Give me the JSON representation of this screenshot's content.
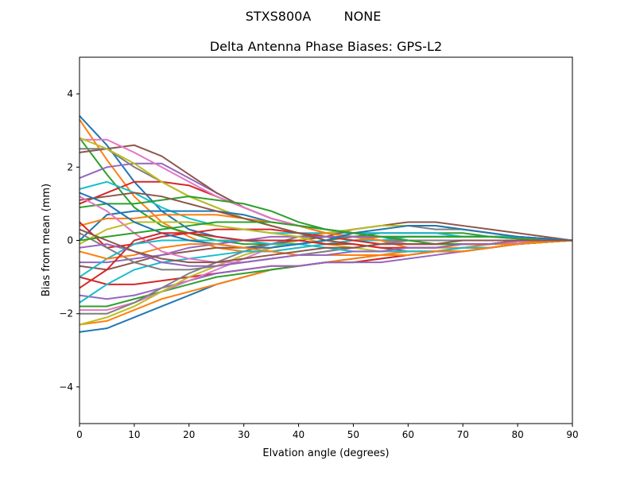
{
  "suptitle_station": "STXS800A",
  "suptitle_radome": "NONE",
  "chart_data": {
    "type": "line",
    "title": "Delta Antenna Phase Biases: GPS-L2",
    "xlabel": "Elvation angle (degrees)",
    "ylabel": "Bias from mean (mm)",
    "xlim": [
      0,
      90
    ],
    "ylim": [
      -5,
      5
    ],
    "xticks": [
      0,
      10,
      20,
      30,
      40,
      50,
      60,
      70,
      80,
      90
    ],
    "yticks": [
      -4,
      -2,
      0,
      2,
      4
    ],
    "ytick_labels": [
      "−4",
      "−2",
      "0",
      "2",
      "4"
    ],
    "grid": false,
    "legend": "none",
    "colors": [
      "#1f77b4",
      "#ff7f0e",
      "#2ca02c",
      "#d62728",
      "#9467bd",
      "#8c564b",
      "#e377c2",
      "#7f7f7f",
      "#bcbd22",
      "#17becf"
    ],
    "x": [
      0,
      5,
      10,
      15,
      20,
      25,
      30,
      35,
      40,
      45,
      50,
      55,
      60,
      65,
      70,
      75,
      80,
      85,
      90
    ],
    "series": [
      {
        "values": [
          3.4,
          2.6,
          1.6,
          0.8,
          0.3,
          0.1,
          0.0,
          -0.1,
          -0.1,
          0.0,
          0.1,
          0.1,
          0.1,
          0.1,
          0.1,
          0.1,
          0.1,
          0.05,
          0
        ]
      },
      {
        "values": [
          3.3,
          2.2,
          1.2,
          0.5,
          0.1,
          -0.2,
          -0.3,
          -0.3,
          -0.2,
          -0.1,
          0.0,
          0.1,
          0.1,
          0.1,
          0.1,
          0.1,
          0.1,
          0.05,
          0
        ]
      },
      {
        "values": [
          2.8,
          1.8,
          0.9,
          0.4,
          0.2,
          0.0,
          -0.1,
          -0.1,
          -0.1,
          0.0,
          0.1,
          0.2,
          0.2,
          0.2,
          0.2,
          0.1,
          0.1,
          0.05,
          0
        ]
      },
      {
        "values": [
          1.0,
          1.3,
          1.6,
          1.6,
          1.5,
          1.2,
          0.9,
          0.6,
          0.4,
          0.2,
          0.1,
          0.1,
          0.1,
          0.1,
          0.1,
          0.1,
          0.05,
          0,
          0
        ]
      },
      {
        "values": [
          1.7,
          2.0,
          2.1,
          2.1,
          1.7,
          1.3,
          0.9,
          0.6,
          0.4,
          0.3,
          0.2,
          0.2,
          0.2,
          0.2,
          0.1,
          0.1,
          0.1,
          0.05,
          0
        ]
      },
      {
        "values": [
          2.4,
          2.5,
          2.6,
          2.3,
          1.8,
          1.3,
          0.9,
          0.6,
          0.4,
          0.2,
          0.1,
          0.0,
          -0.1,
          -0.1,
          -0.1,
          -0.1,
          -0.1,
          0,
          0
        ]
      },
      {
        "values": [
          2.75,
          2.75,
          2.4,
          2.0,
          1.6,
          1.2,
          0.9,
          0.6,
          0.4,
          0.2,
          0.1,
          0.0,
          -0.1,
          -0.1,
          -0.1,
          -0.1,
          -0.05,
          0,
          0
        ]
      },
      {
        "values": [
          2.5,
          2.5,
          2.0,
          1.6,
          1.2,
          0.9,
          0.6,
          0.4,
          0.2,
          0.1,
          0.1,
          0.0,
          0.0,
          0.0,
          0.0,
          0.0,
          0.0,
          0,
          0
        ]
      },
      {
        "values": [
          2.8,
          2.5,
          2.1,
          1.6,
          1.2,
          0.9,
          0.6,
          0.4,
          0.2,
          0.1,
          0.0,
          -0.1,
          -0.1,
          -0.1,
          -0.1,
          -0.1,
          0,
          0,
          0
        ]
      },
      {
        "values": [
          1.4,
          1.6,
          1.3,
          0.9,
          0.6,
          0.4,
          0.3,
          0.2,
          0.2,
          0.2,
          0.2,
          0.2,
          0.2,
          0.2,
          0.1,
          0.1,
          0.1,
          0.05,
          0
        ]
      },
      {
        "values": [
          -2.5,
          -2.4,
          -2.1,
          -1.8,
          -1.5,
          -1.2,
          -1.0,
          -0.8,
          -0.7,
          -0.6,
          -0.5,
          -0.4,
          -0.3,
          -0.3,
          -0.2,
          -0.2,
          -0.1,
          -0.05,
          0
        ]
      },
      {
        "values": [
          -2.3,
          -2.2,
          -1.9,
          -1.6,
          -1.4,
          -1.2,
          -1.0,
          -0.8,
          -0.7,
          -0.6,
          -0.5,
          -0.4,
          -0.3,
          -0.3,
          -0.2,
          -0.2,
          -0.1,
          -0.05,
          0
        ]
      },
      {
        "values": [
          -1.8,
          -1.8,
          -1.6,
          -1.4,
          -1.2,
          -1.0,
          -0.9,
          -0.8,
          -0.7,
          -0.6,
          -0.6,
          -0.5,
          -0.4,
          -0.3,
          -0.2,
          -0.2,
          -0.1,
          -0.05,
          0
        ]
      },
      {
        "values": [
          -1.0,
          -1.2,
          -1.2,
          -1.1,
          -1.0,
          -0.9,
          -0.8,
          -0.7,
          -0.7,
          -0.6,
          -0.6,
          -0.5,
          -0.4,
          -0.3,
          -0.3,
          -0.2,
          -0.1,
          -0.05,
          0
        ]
      },
      {
        "values": [
          -1.5,
          -1.6,
          -1.5,
          -1.3,
          -1.1,
          -0.9,
          -0.8,
          -0.7,
          -0.7,
          -0.6,
          -0.6,
          -0.6,
          -0.5,
          -0.4,
          -0.3,
          -0.2,
          -0.1,
          -0.05,
          0
        ]
      },
      {
        "values": [
          -0.7,
          -0.8,
          -0.6,
          -0.4,
          -0.3,
          -0.2,
          -0.2,
          -0.1,
          0.0,
          0.1,
          0.3,
          0.4,
          0.5,
          0.5,
          0.4,
          0.3,
          0.2,
          0.1,
          0
        ]
      },
      {
        "values": [
          -1.9,
          -1.9,
          -1.7,
          -1.4,
          -1.1,
          -0.8,
          -0.5,
          -0.2,
          0.0,
          0.2,
          0.3,
          0.4,
          0.4,
          0.4,
          0.3,
          0.2,
          0.1,
          0.05,
          0
        ]
      },
      {
        "values": [
          -2.0,
          -2.0,
          -1.7,
          -1.3,
          -0.9,
          -0.6,
          -0.3,
          -0.1,
          0.1,
          0.2,
          0.3,
          0.4,
          0.4,
          0.3,
          0.3,
          0.2,
          0.1,
          0.05,
          0
        ]
      },
      {
        "values": [
          -2.3,
          -2.1,
          -1.8,
          -1.4,
          -1.0,
          -0.7,
          -0.4,
          -0.2,
          0.0,
          0.2,
          0.3,
          0.4,
          0.4,
          0.4,
          0.3,
          0.2,
          0.1,
          0.05,
          0
        ]
      },
      {
        "values": [
          -1.7,
          -1.2,
          -0.8,
          -0.6,
          -0.5,
          -0.4,
          -0.3,
          -0.3,
          -0.2,
          -0.1,
          0.0,
          0.0,
          0.1,
          0.1,
          0.1,
          0.1,
          0.1,
          0.05,
          0
        ]
      },
      {
        "values": [
          0.0,
          0.7,
          0.8,
          0.8,
          0.8,
          0.8,
          0.7,
          0.5,
          0.4,
          0.3,
          0.2,
          0.1,
          0.0,
          0.0,
          0.0,
          0.0,
          0.0,
          0,
          0
        ]
      },
      {
        "values": [
          0.4,
          0.6,
          0.6,
          0.7,
          0.7,
          0.7,
          0.6,
          0.5,
          0.4,
          0.2,
          0.1,
          0.0,
          -0.2,
          -0.2,
          -0.2,
          -0.1,
          -0.1,
          0,
          0
        ]
      },
      {
        "values": [
          0.9,
          1.0,
          1.0,
          1.1,
          1.2,
          1.1,
          1.0,
          0.8,
          0.5,
          0.3,
          0.2,
          0.1,
          0.1,
          0.1,
          0.1,
          0.1,
          0.05,
          0,
          0
        ]
      },
      {
        "values": [
          0.5,
          -0.2,
          -0.1,
          0.1,
          0.2,
          0.3,
          0.3,
          0.3,
          0.2,
          0.1,
          0.0,
          -0.1,
          -0.1,
          -0.1,
          -0.1,
          -0.1,
          0,
          0,
          0
        ]
      },
      {
        "values": [
          -0.6,
          -0.6,
          -0.5,
          -0.4,
          -0.2,
          -0.1,
          0.0,
          0.1,
          0.1,
          0.1,
          0.1,
          0.1,
          0.0,
          0.0,
          0.0,
          0,
          0,
          0,
          0
        ]
      },
      {
        "values": [
          1.1,
          1.2,
          1.3,
          1.2,
          1.0,
          0.8,
          0.6,
          0.4,
          0.2,
          0.0,
          -0.1,
          -0.2,
          -0.3,
          -0.3,
          -0.3,
          -0.2,
          -0.1,
          -0.05,
          0
        ]
      },
      {
        "values": [
          1.2,
          0.8,
          0.2,
          -0.3,
          -0.5,
          -0.6,
          -0.6,
          -0.5,
          -0.4,
          -0.3,
          -0.2,
          -0.1,
          0.0,
          0.0,
          0.0,
          0,
          0,
          0,
          0
        ]
      },
      {
        "values": [
          0.2,
          -0.2,
          -0.6,
          -0.8,
          -0.8,
          -0.7,
          -0.6,
          -0.5,
          -0.4,
          -0.3,
          -0.2,
          -0.1,
          0.0,
          0.0,
          0.0,
          0,
          0,
          0,
          0
        ]
      },
      {
        "values": [
          -0.1,
          0.3,
          0.5,
          0.5,
          0.5,
          0.4,
          0.3,
          0.2,
          0.1,
          -0.1,
          -0.2,
          -0.3,
          -0.3,
          -0.3,
          -0.2,
          -0.2,
          -0.1,
          -0.05,
          0
        ]
      },
      {
        "values": [
          -1.0,
          -0.5,
          -0.1,
          0.0,
          0.0,
          0.0,
          0.0,
          -0.1,
          -0.1,
          -0.2,
          -0.3,
          -0.3,
          -0.3,
          -0.3,
          -0.2,
          -0.2,
          -0.1,
          -0.05,
          0
        ]
      },
      {
        "values": [
          1.3,
          1.0,
          0.5,
          0.2,
          0.0,
          -0.1,
          -0.2,
          -0.2,
          -0.1,
          0.0,
          0.2,
          0.3,
          0.4,
          0.4,
          0.3,
          0.2,
          0.1,
          0.05,
          0
        ]
      },
      {
        "values": [
          -0.3,
          -0.5,
          -0.4,
          -0.2,
          -0.1,
          -0.1,
          -0.2,
          -0.3,
          -0.4,
          -0.4,
          -0.4,
          -0.4,
          -0.4,
          -0.3,
          -0.3,
          -0.2,
          -0.1,
          -0.05,
          0
        ]
      },
      {
        "values": [
          0.0,
          0.1,
          0.2,
          0.3,
          0.4,
          0.5,
          0.5,
          0.5,
          0.4,
          0.3,
          0.2,
          0.1,
          0.0,
          -0.1,
          -0.1,
          -0.1,
          0,
          0,
          0
        ]
      },
      {
        "values": [
          -1.3,
          -0.8,
          0.0,
          0.2,
          0.2,
          0.1,
          0.0,
          0.0,
          0.0,
          -0.1,
          -0.1,
          -0.2,
          -0.2,
          -0.2,
          -0.1,
          -0.1,
          0,
          0,
          0
        ]
      },
      {
        "values": [
          -0.2,
          -0.1,
          -0.3,
          -0.6,
          -0.7,
          -0.7,
          -0.6,
          -0.5,
          -0.4,
          -0.4,
          -0.3,
          -0.3,
          -0.2,
          -0.2,
          -0.1,
          -0.1,
          0,
          0,
          0
        ]
      },
      {
        "values": [
          0.3,
          0.0,
          -0.3,
          -0.5,
          -0.6,
          -0.6,
          -0.5,
          -0.4,
          -0.3,
          -0.2,
          -0.2,
          -0.1,
          -0.1,
          -0.1,
          0,
          0,
          0,
          0,
          0
        ]
      }
    ]
  }
}
